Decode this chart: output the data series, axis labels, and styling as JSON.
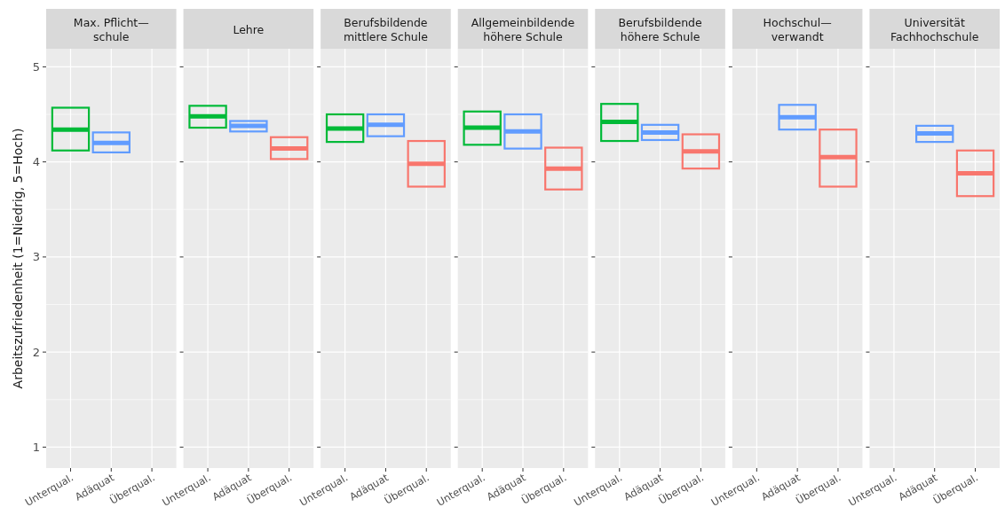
{
  "chart_data": [
    {
      "type": "box",
      "title": "Max. Pflicht—\nschule",
      "ylabel": "Arbeitszufriedenheit (1=Niedrig, 5=Hoch)",
      "categories": [
        "Unterqual.",
        "Adäquat",
        "Überqual."
      ],
      "colors": [
        "#00ba38",
        "#619cff",
        null
      ],
      "ylim": [
        0.78,
        5.19
      ],
      "yticks": [
        1,
        2,
        3,
        4,
        5
      ],
      "grid": true,
      "boxes": [
        {
          "low": 4.12,
          "q1": 4.12,
          "median": 4.34,
          "q3": 4.57,
          "high": 4.57
        },
        {
          "low": 4.1,
          "q1": 4.1,
          "median": 4.2,
          "q3": 4.31,
          "high": 4.31
        },
        null
      ]
    },
    {
      "type": "box",
      "title": "Lehre",
      "categories": [
        "Unterqual.",
        "Adäquat",
        "Überqual."
      ],
      "colors": [
        "#00ba38",
        "#619cff",
        "#f8766d"
      ],
      "ylim": [
        0.78,
        5.19
      ],
      "yticks": [
        1,
        2,
        3,
        4,
        5
      ],
      "grid": true,
      "tick_labels": "x",
      "boxes": [
        {
          "low": 4.36,
          "q1": 4.36,
          "median": 4.48,
          "q3": 4.59,
          "high": 4.59
        },
        {
          "low": 4.32,
          "q1": 4.32,
          "median": 4.38,
          "q3": 4.43,
          "high": 4.43
        },
        {
          "low": 4.03,
          "q1": 4.03,
          "median": 4.14,
          "q3": 4.26,
          "high": 4.26
        }
      ]
    },
    {
      "type": "box",
      "title": "Berufsbildende\nmittlere Schule",
      "categories": [
        "Unterqual.",
        "Adäquat",
        "Überqual."
      ],
      "colors": [
        "#00ba38",
        "#619cff",
        "#f8766d"
      ],
      "ylim": [
        0.78,
        5.19
      ],
      "yticks": [
        1,
        2,
        3,
        4,
        5
      ],
      "grid": true,
      "tick_labels": "x",
      "boxes": [
        {
          "low": 4.21,
          "q1": 4.21,
          "median": 4.35,
          "q3": 4.5,
          "high": 4.5
        },
        {
          "low": 4.27,
          "q1": 4.27,
          "median": 4.39,
          "q3": 4.5,
          "high": 4.5
        },
        {
          "low": 3.74,
          "q1": 3.74,
          "median": 3.98,
          "q3": 4.22,
          "high": 4.22
        }
      ]
    },
    {
      "type": "box",
      "title": "Allgemeinbildende\nhöhere Schule",
      "categories": [
        "Unterqual.",
        "Adäquat",
        "Überqual."
      ],
      "colors": [
        "#00ba38",
        "#619cff",
        "#f8766d"
      ],
      "ylim": [
        0.78,
        5.19
      ],
      "yticks": [
        1,
        2,
        3,
        4,
        5
      ],
      "grid": true,
      "tick_labels": "x",
      "boxes": [
        {
          "low": 4.18,
          "q1": 4.18,
          "median": 4.36,
          "q3": 4.53,
          "high": 4.53
        },
        {
          "low": 4.14,
          "q1": 4.14,
          "median": 4.32,
          "q3": 4.5,
          "high": 4.5
        },
        {
          "low": 3.71,
          "q1": 3.71,
          "median": 3.93,
          "q3": 4.15,
          "high": 4.15
        }
      ]
    },
    {
      "type": "box",
      "title": "Berufsbildende\nhöhere Schule",
      "categories": [
        "Unterqual.",
        "Adäquat",
        "Überqual."
      ],
      "colors": [
        "#00ba38",
        "#619cff",
        "#f8766d"
      ],
      "ylim": [
        0.78,
        5.19
      ],
      "yticks": [
        1,
        2,
        3,
        4,
        5
      ],
      "grid": true,
      "tick_labels": "x",
      "boxes": [
        {
          "low": 4.22,
          "q1": 4.22,
          "median": 4.42,
          "q3": 4.61,
          "high": 4.61
        },
        {
          "low": 4.23,
          "q1": 4.23,
          "median": 4.31,
          "q3": 4.39,
          "high": 4.39
        },
        {
          "low": 3.93,
          "q1": 3.93,
          "median": 4.11,
          "q3": 4.29,
          "high": 4.29
        }
      ]
    },
    {
      "type": "box",
      "title": "Hochschul—\nverwandt",
      "categories": [
        "Unterqual.",
        "Adäquat",
        "Überqual."
      ],
      "colors": [
        null,
        "#619cff",
        "#f8766d"
      ],
      "ylim": [
        0.78,
        5.19
      ],
      "yticks": [
        1,
        2,
        3,
        4,
        5
      ],
      "grid": true,
      "tick_labels": "x",
      "boxes": [
        null,
        {
          "low": 4.34,
          "q1": 4.34,
          "median": 4.47,
          "q3": 4.6,
          "high": 4.6
        },
        {
          "low": 3.74,
          "q1": 3.74,
          "median": 4.05,
          "q3": 4.34,
          "high": 4.34
        }
      ]
    },
    {
      "type": "box",
      "title": "Universität\nFachhochschule",
      "categories": [
        "Unterqual.",
        "Adäquat",
        "Überqual."
      ],
      "colors": [
        null,
        "#619cff",
        "#f8766d"
      ],
      "ylim": [
        0.78,
        5.19
      ],
      "yticks": [
        1,
        2,
        3,
        4,
        5
      ],
      "grid": true,
      "tick_labels": "x",
      "boxes": [
        null,
        {
          "low": 4.21,
          "q1": 4.21,
          "median": 4.3,
          "q3": 4.38,
          "high": 4.38
        },
        {
          "low": 3.64,
          "q1": 3.64,
          "median": 3.88,
          "q3": 4.12,
          "high": 4.12
        }
      ]
    }
  ]
}
